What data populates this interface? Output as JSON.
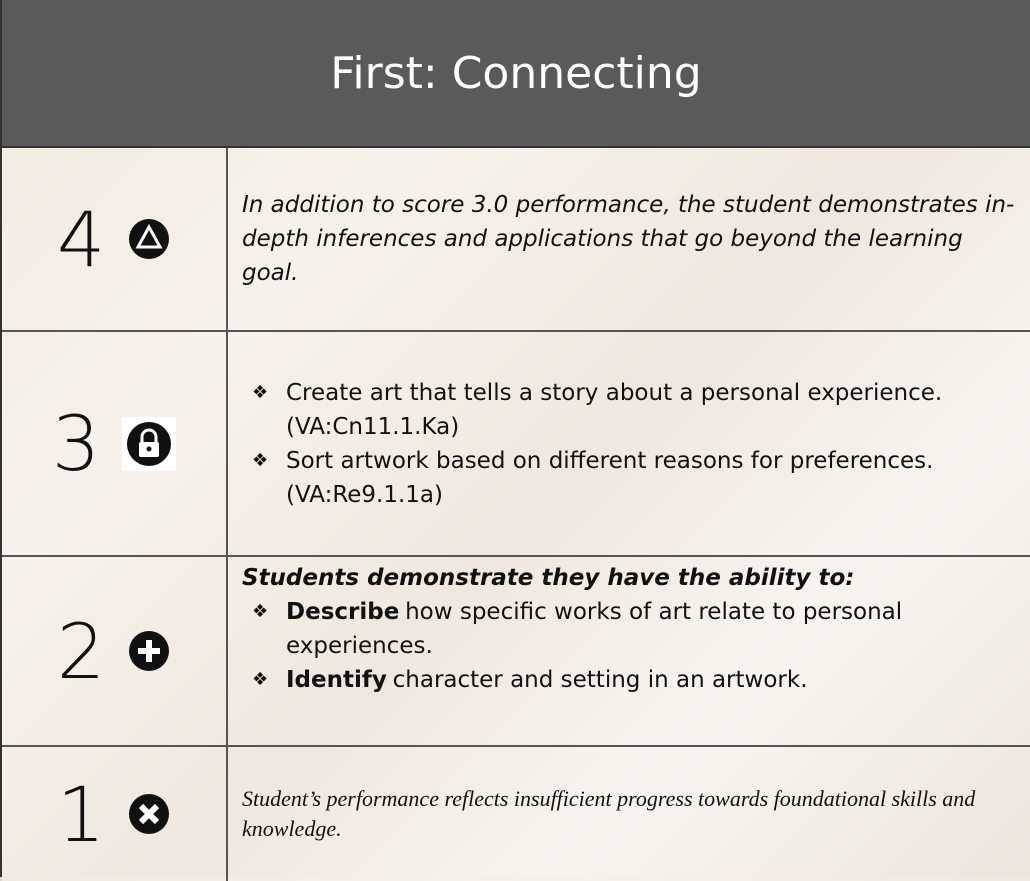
{
  "title": "First: Connecting",
  "rows": [
    {
      "score": "4",
      "text": "In addition to score 3.0 performance, the student demonstrates in-depth inferences and applications that go beyond the learning goal."
    },
    {
      "score": "3",
      "bullets": [
        "Create art that tells a story about a personal experience. (VA:Cn11.1.Ka)",
        "Sort artwork based on different reasons for preferences. (VA:Re9.1.1a)"
      ]
    },
    {
      "score": "2",
      "intro": "Students demonstrate they have the ability to:",
      "bullets": [
        {
          "strong": "Describe",
          "text": "how specific works of art relate to personal experiences."
        },
        {
          "strong": "Identify",
          "text": "character and setting in an artwork."
        }
      ]
    },
    {
      "score": "1",
      "text": "Student’s performance reflects insufficient progress towards foundational skills and knowledge."
    }
  ]
}
